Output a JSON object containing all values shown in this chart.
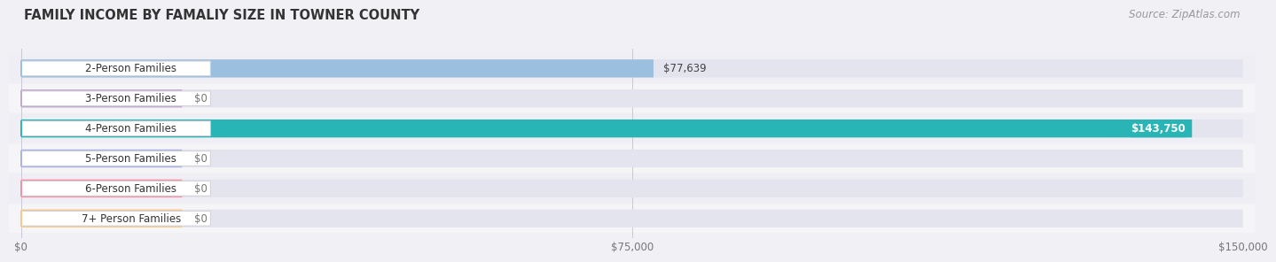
{
  "title": "FAMILY INCOME BY FAMALIY SIZE IN TOWNER COUNTY",
  "source": "Source: ZipAtlas.com",
  "categories": [
    "2-Person Families",
    "3-Person Families",
    "4-Person Families",
    "5-Person Families",
    "6-Person Families",
    "7+ Person Families"
  ],
  "values": [
    77639,
    0,
    143750,
    0,
    0,
    0
  ],
  "bar_colors": [
    "#9bbfde",
    "#c4a8d0",
    "#29b4b6",
    "#aab2e4",
    "#f490a0",
    "#f5c98a"
  ],
  "value_labels": [
    "$77,639",
    "$0",
    "$143,750",
    "$0",
    "$0",
    "$0"
  ],
  "xlim": [
    0,
    150000
  ],
  "xtick_values": [
    0,
    75000,
    150000
  ],
  "xtick_labels": [
    "$0",
    "$75,000",
    "$150,000"
  ],
  "bg_colors": [
    "#eeeef4",
    "#f5f5f8",
    "#eeeef4",
    "#f5f5f8",
    "#eeeef4",
    "#f5f5f8"
  ],
  "bar_track_color": "#e4e4ee",
  "title_fontsize": 10.5,
  "source_fontsize": 8.5,
  "label_fontsize": 8.5,
  "value_fontsize": 8.5
}
